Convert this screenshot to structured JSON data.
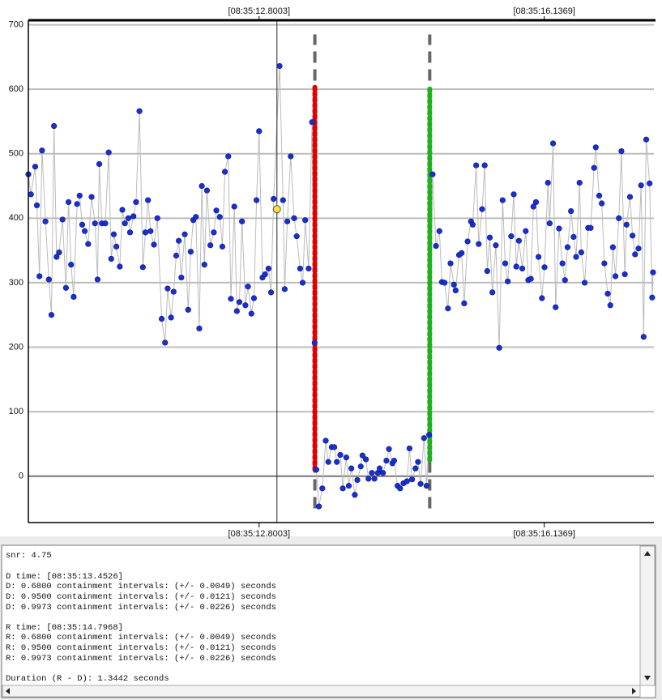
{
  "chart_data": {
    "type": "line",
    "x": [
      10.1,
      10.13,
      10.18,
      10.2,
      10.23,
      10.26,
      10.3,
      10.34,
      10.37,
      10.4,
      10.43,
      10.46,
      10.5,
      10.54,
      10.57,
      10.6,
      10.63,
      10.67,
      10.7,
      10.73,
      10.76,
      10.8,
      10.84,
      10.88,
      10.91,
      10.93,
      10.96,
      11.0,
      11.04,
      11.07,
      11.1,
      11.13,
      11.17,
      11.2,
      11.23,
      11.27,
      11.29,
      11.33,
      11.36,
      11.4,
      11.44,
      11.47,
      11.5,
      11.53,
      11.57,
      11.61,
      11.66,
      11.7,
      11.73,
      11.77,
      11.8,
      11.83,
      11.86,
      11.89,
      11.93,
      11.97,
      12.0,
      12.03,
      12.06,
      12.1,
      12.13,
      12.16,
      12.19,
      12.23,
      12.27,
      12.3,
      12.34,
      12.37,
      12.4,
      12.44,
      12.47,
      12.51,
      12.54,
      12.57,
      12.6,
      12.64,
      12.67,
      12.71,
      12.74,
      12.77,
      12.8,
      12.84,
      12.87,
      12.91,
      12.94,
      12.97,
      13.04,
      13.08,
      13.1,
      13.13,
      13.17,
      13.21,
      13.24,
      13.28,
      13.31,
      13.34,
      13.38,
      13.42,
      13.45,
      13.47,
      13.5,
      13.54,
      13.58,
      13.61,
      13.65,
      13.68,
      13.71,
      13.75,
      13.78,
      13.82,
      13.85,
      13.88,
      13.92,
      13.95,
      13.99,
      14.01,
      14.05,
      14.08,
      14.12,
      14.15,
      14.19,
      14.21,
      14.25,
      14.29,
      14.32,
      14.36,
      14.38,
      14.42,
      14.45,
      14.49,
      14.53,
      14.56,
      14.59,
      14.63,
      14.66,
      14.69,
      14.73,
      14.76,
      14.79,
      14.83,
      14.87,
      14.91,
      14.94,
      14.97,
      15.01,
      15.04,
      15.08,
      15.1,
      15.14,
      15.17,
      15.2,
      15.24,
      15.28,
      15.3,
      15.34,
      15.37,
      15.41,
      15.44,
      15.47,
      15.5,
      15.53,
      15.57,
      15.61,
      15.65,
      15.68,
      15.71,
      15.75,
      15.78,
      15.81,
      15.84,
      15.88,
      15.92,
      15.95,
      15.98,
      16.01,
      16.04,
      16.07,
      16.11,
      16.14,
      16.18,
      16.2,
      16.24,
      16.27,
      16.31,
      16.35,
      16.38,
      16.41,
      16.45,
      16.48,
      16.51,
      16.55,
      16.57,
      16.61,
      16.65,
      16.68,
      16.72,
      16.74,
      16.78,
      16.81,
      16.84,
      16.88,
      16.91,
      16.94,
      16.97,
      17.01,
      17.04,
      17.08,
      17.1,
      17.14,
      17.17,
      17.2,
      17.24,
      17.27,
      17.3,
      17.33,
      17.37,
      17.4,
      17.41
    ],
    "values": [
      468,
      437,
      480,
      420,
      310,
      505,
      395,
      305,
      250,
      543,
      340,
      347,
      398,
      292,
      425,
      328,
      278,
      422,
      435,
      390,
      380,
      360,
      433,
      392,
      305,
      484,
      392,
      392,
      502,
      337,
      375,
      356,
      325,
      413,
      392,
      400,
      378,
      403,
      425,
      566,
      324,
      378,
      428,
      380,
      359,
      400,
      244,
      207,
      291,
      246,
      286,
      342,
      365,
      308,
      375,
      258,
      348,
      397,
      402,
      229,
      450,
      328,
      443,
      358,
      378,
      412,
      402,
      356,
      472,
      496,
      275,
      418,
      256,
      270,
      395,
      265,
      294,
      252,
      276,
      428,
      535,
      308,
      313,
      322,
      285,
      430,
      636,
      428,
      290,
      395,
      496,
      400,
      372,
      322,
      300,
      397,
      322,
      549,
      207,
      10,
      -47,
      -19,
      55,
      22,
      45,
      45,
      22,
      33,
      -19,
      29,
      -15,
      12,
      -29,
      -6,
      15,
      32,
      26,
      -4,
      5,
      -4,
      5,
      12,
      5,
      24,
      42,
      20,
      24,
      -15,
      -19,
      -11,
      -8,
      43,
      -5,
      12,
      22,
      -12,
      59,
      -15,
      64,
      468,
      357,
      380,
      301,
      300,
      260,
      330,
      297,
      288,
      343,
      346,
      268,
      364,
      395,
      390,
      482,
      360,
      414,
      482,
      318,
      370,
      285,
      358,
      199,
      428,
      330,
      302,
      372,
      437,
      325,
      365,
      322,
      380,
      304,
      306,
      418,
      425,
      340,
      276,
      324,
      455,
      392,
      516,
      262,
      384,
      330,
      304,
      355,
      411,
      371,
      340,
      455,
      347,
      300,
      385,
      385,
      478,
      510,
      435,
      423,
      330,
      283,
      265,
      355,
      310,
      400,
      504,
      313,
      390,
      433,
      373,
      344,
      353,
      451,
      216,
      522,
      454,
      277,
      316
    ],
    "color": "#1a2fd0",
    "line_color": "#bbbbbb",
    "xlim": [
      10.1,
      17.42
    ],
    "xticks": [
      {
        "value": 12.8003,
        "label": "[08:35:12.8003]"
      },
      {
        "value": 16.1369,
        "label": "[08:35:16.1369]"
      }
    ],
    "ylim": [
      -72,
      707
    ],
    "yticks": [
      0,
      100,
      200,
      300,
      400,
      500,
      600,
      700
    ],
    "grid": true,
    "vlines": [
      {
        "x": 13.4526,
        "color": "#e00000",
        "range": [
          10,
          605
        ]
      },
      {
        "x": 14.7968,
        "color": "#1fb01f",
        "range": [
          25,
          605
        ]
      }
    ],
    "vline_outer": [
      -50,
      685
    ],
    "vline_outer_color": "#666666",
    "cursor": {
      "x": 13.009,
      "y": 414,
      "color": "#ffe033"
    }
  },
  "log": [
    "snr: 4.75",
    "D time: [08:35:13.4526]",
    "D: 0.6800 containment intervals: (+/- 0.0049) seconds",
    "D: 0.9500 containment intervals: (+/- 0.0121) seconds",
    "D: 0.9973 containment intervals: (+/- 0.0226) seconds",
    "R time: [08:35:14.7968]",
    "R: 0.6800 containment intervals: (+/- 0.0049) seconds",
    "R: 0.9500 containment intervals: (+/- 0.0121) seconds",
    "R: 0.9973 containment intervals: (+/- 0.0226) seconds",
    "Duration (R - D): 1.3442 seconds"
  ]
}
